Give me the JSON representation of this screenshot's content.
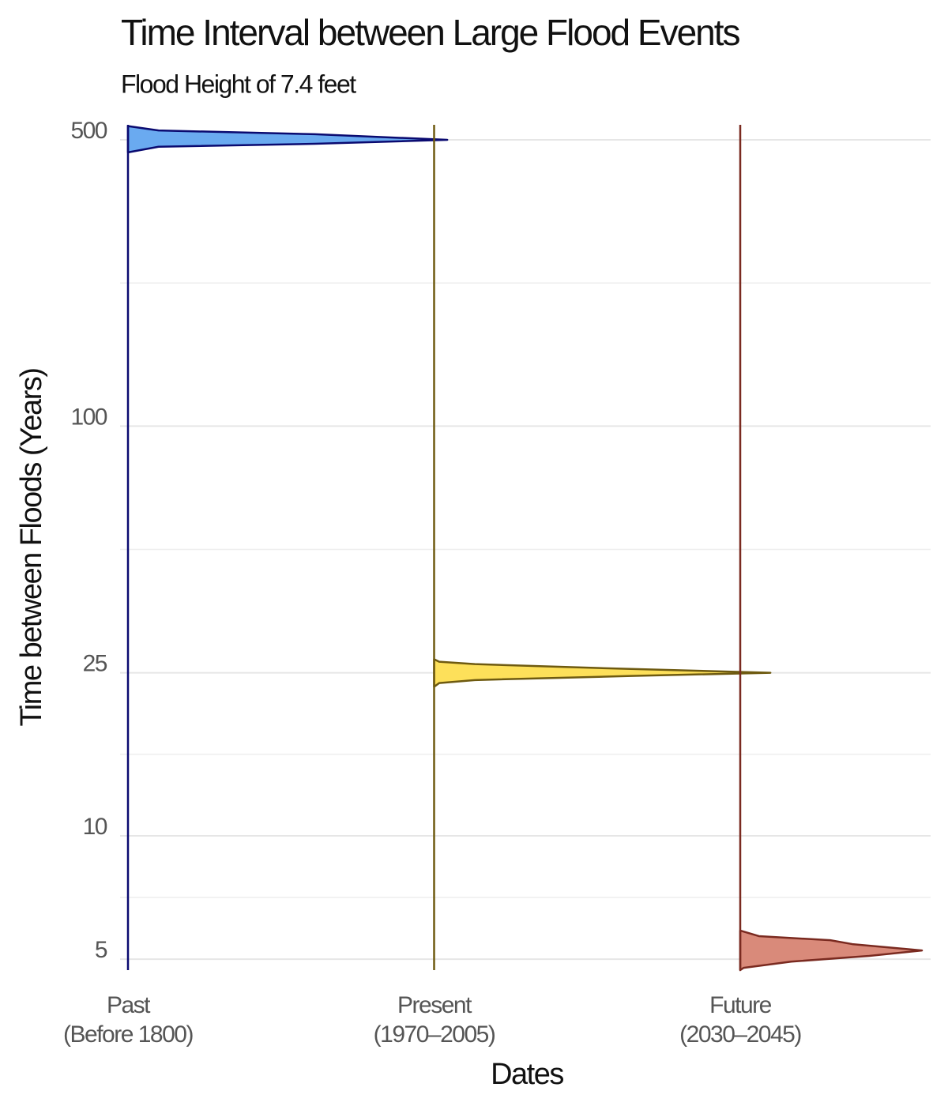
{
  "chart_data": {
    "type": "half-violin",
    "title": "Time Interval between Large Flood Events",
    "subtitle": "Flood Height of 7.4 feet",
    "x_label": "Dates",
    "y_label": "Time between Floods (Years)",
    "categories": [
      "Past\n(Before 1800)",
      "Present\n(1970–2005)",
      "Future\n(2030–2045)"
    ],
    "log_y": true,
    "grid": true,
    "ylim": [
      4.7,
      544
    ],
    "yticks": [
      5,
      10,
      25,
      100,
      500
    ],
    "series": [
      {
        "color": "#6aaaf0",
        "line_color": "#0a0a70",
        "y": [
          540,
          527,
          516,
          500,
          489,
          481,
          466
        ],
        "density": [
          0,
          0.09,
          0.55,
          0.94,
          0.55,
          0.09,
          0
        ]
      },
      {
        "color": "#fde05a",
        "line_color": "#6e5a10",
        "y": [
          26.97,
          26.6,
          26.25,
          25.7,
          25,
          24.56,
          24,
          23.6,
          23.1
        ],
        "density": [
          0,
          0.015,
          0.12,
          0.47,
          0.99,
          0.58,
          0.12,
          0.015,
          0
        ]
      },
      {
        "color": "#d98a7a",
        "line_color": "#7a2a20",
        "y": [
          5.87,
          5.69,
          5.56,
          5.44,
          5.25,
          5.09,
          4.93,
          4.76,
          4.7
        ],
        "density": [
          0,
          0.055,
          0.265,
          0.33,
          0.535,
          0.38,
          0.15,
          0.01,
          0
        ]
      }
    ]
  }
}
